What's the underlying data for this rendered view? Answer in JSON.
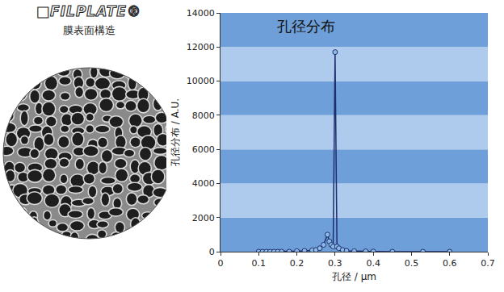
{
  "panel": {
    "logo": "■FILPLATE®",
    "caption": "膜表面構造"
  },
  "chart_data": {
    "type": "line",
    "title": "孔径分布",
    "x_label": "孔径 / μm",
    "y_label": "孔径分布 / A.U.",
    "x": [
      0.1,
      0.11,
      0.12,
      0.13,
      0.14,
      0.15,
      0.16,
      0.18,
      0.2,
      0.22,
      0.24,
      0.25,
      0.26,
      0.27,
      0.28,
      0.285,
      0.29,
      0.295,
      0.3,
      0.305,
      0.31,
      0.32,
      0.33,
      0.35,
      0.38,
      0.4,
      0.45,
      0.53,
      0.6
    ],
    "series": [
      {
        "color": "#1f2f6e",
        "marker": "circle",
        "values": [
          0,
          0,
          0,
          0,
          0,
          0,
          0,
          0,
          30,
          50,
          80,
          100,
          200,
          400,
          1000,
          600,
          400,
          300,
          11700,
          300,
          200,
          100,
          50,
          30,
          20,
          10,
          0,
          0,
          0
        ]
      }
    ],
    "xlim": [
      0,
      0.7
    ],
    "xticks": [
      0,
      0.1,
      0.2,
      0.3,
      0.4,
      0.5,
      0.6,
      0.7
    ],
    "ylim": [
      0,
      14000
    ],
    "yticks": [
      0,
      2000,
      4000,
      6000,
      8000,
      10000,
      12000,
      14000
    ],
    "grid": true
  }
}
